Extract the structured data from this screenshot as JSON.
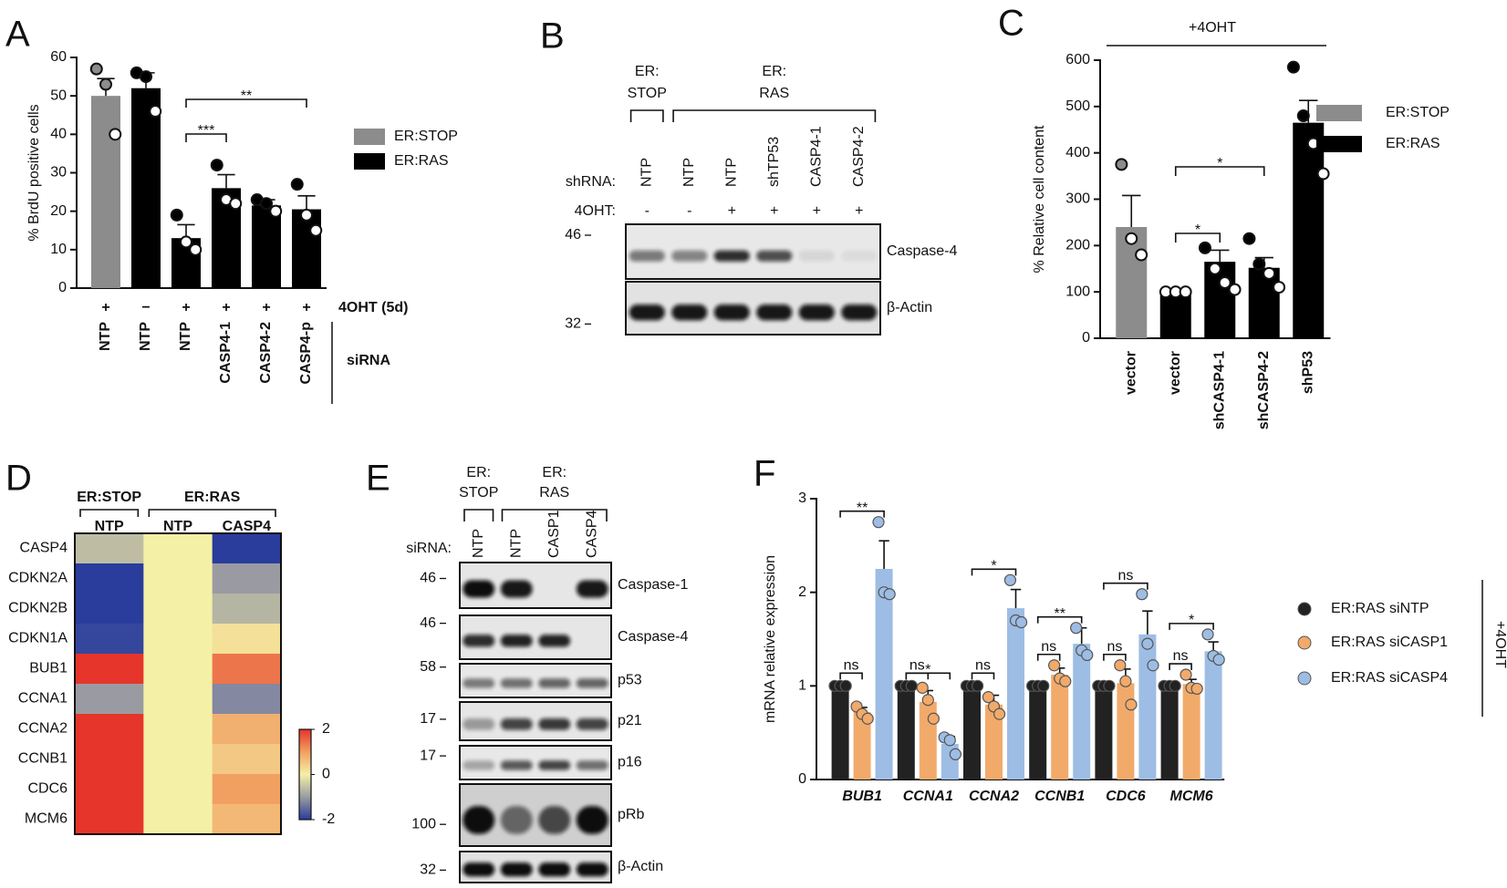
{
  "chart_data": [
    {
      "panel": "A",
      "type": "bar",
      "ylabel": "% BrdU positive cells",
      "categories": [
        "NTP",
        "NTP",
        "NTP",
        "CASP4-1",
        "CASP4-2",
        "CASP4-p"
      ],
      "treatment_label": "4OHT (5d)",
      "treatment": [
        "+",
        "−",
        "+",
        "+",
        "+",
        "+"
      ],
      "category_group_label": "siRNA",
      "series": [
        {
          "name": "ER:STOP",
          "color": "#8c8c8c",
          "values": [
            50,
            null,
            null,
            null,
            null,
            null
          ],
          "errors": [
            4.5,
            null,
            null,
            null,
            null,
            null
          ],
          "points": [
            [
              57,
              53,
              40
            ],
            null,
            null,
            null,
            null,
            null
          ]
        },
        {
          "name": "ER:RAS",
          "color": "#000000",
          "values": [
            null,
            52,
            13,
            26,
            21.5,
            20.5
          ],
          "errors": [
            null,
            4,
            3.5,
            3.5,
            1.5,
            3.5
          ],
          "points": [
            null,
            [
              56,
              55,
              46
            ],
            [
              19,
              12,
              10
            ],
            [
              32,
              23,
              22
            ],
            [
              23,
              22,
              20
            ],
            [
              27,
              19,
              15
            ]
          ]
        }
      ],
      "ylim": [
        0,
        60
      ],
      "yticks": [
        0,
        10,
        20,
        30,
        40,
        50,
        60
      ],
      "annotations": [
        {
          "text": "***",
          "from": 2,
          "to": 3
        },
        {
          "text": "**",
          "from": 2,
          "to": 5
        }
      ]
    },
    {
      "panel": "C",
      "type": "bar",
      "title": "+4OHT",
      "ylabel": "% Relative cell content",
      "categories": [
        "vector",
        "vector",
        "shCASP4-1",
        "shCASP4-2",
        "shP53"
      ],
      "series": [
        {
          "name": "ER:STOP",
          "color": "#8c8c8c",
          "values": [
            240,
            null,
            null,
            null,
            null
          ],
          "errors": [
            68,
            null,
            null,
            null,
            null
          ],
          "points": [
            [
              375,
              215,
              180
            ],
            null,
            null,
            null,
            null
          ]
        },
        {
          "name": "ER:RAS",
          "color": "#000000",
          "values": [
            null,
            100,
            165,
            152,
            465
          ],
          "errors": [
            null,
            5,
            25,
            22,
            48
          ],
          "points": [
            null,
            [
              100,
              100,
              100
            ],
            [
              195,
              150,
              120,
              105
            ],
            [
              215,
              160,
              140,
              110
            ],
            [
              585,
              480,
              420,
              355
            ]
          ]
        }
      ],
      "ylim": [
        0,
        600
      ],
      "yticks": [
        0,
        100,
        200,
        300,
        400,
        500,
        600
      ],
      "annotations": [
        {
          "text": "*",
          "from": 1,
          "to": 2
        },
        {
          "text": "*",
          "from": 1,
          "to": 3
        }
      ]
    },
    {
      "panel": "D",
      "type": "heatmap",
      "rows": [
        "CASP4",
        "CDKN2A",
        "CDKN2B",
        "CDKN1A",
        "BUB1",
        "CCNA1",
        "CCNA2",
        "CCNB1",
        "CDC6",
        "MCM6"
      ],
      "column_groups": [
        {
          "name": "ER:STOP",
          "columns": [
            "NTP"
          ]
        },
        {
          "name": "ER:RAS",
          "columns": [
            "NTP",
            "CASP4"
          ]
        }
      ],
      "values": [
        [
          -0.6,
          0,
          -2
        ],
        [
          -2,
          0,
          -1
        ],
        [
          -2,
          0,
          -0.7
        ],
        [
          -1.9,
          0,
          0.2
        ],
        [
          2,
          0,
          1.4
        ],
        [
          -1,
          0,
          -1.2
        ],
        [
          2,
          0,
          0.8
        ],
        [
          2,
          0,
          0.5
        ],
        [
          2,
          0,
          1
        ],
        [
          2,
          0,
          0.7
        ]
      ],
      "zlim": [
        -2,
        2
      ],
      "zticks": [
        2,
        0,
        -2
      ],
      "colors": [
        "#2a3c9c",
        "#9a9ba2",
        "#f4f0a6",
        "#f2a062",
        "#e6352a"
      ]
    },
    {
      "panel": "F",
      "type": "bar",
      "grouped": true,
      "ylabel": "mRNA relative expression",
      "categories": [
        "BUB1",
        "CCNA1",
        "CCNA2",
        "CCNB1",
        "CDC6",
        "MCM6"
      ],
      "side_label": "+4OHT",
      "series": [
        {
          "name": "ER:RAS siNTP",
          "color": "#222222",
          "values": [
            1,
            1,
            1,
            1,
            1,
            1
          ],
          "errors": [
            0.02,
            0.02,
            0.02,
            0.02,
            0.02,
            0.02
          ],
          "points": [
            [
              1,
              1,
              1
            ],
            [
              1,
              1,
              1
            ],
            [
              1,
              1,
              1
            ],
            [
              1,
              1,
              1
            ],
            [
              1,
              1,
              1
            ],
            [
              1,
              1,
              1
            ]
          ]
        },
        {
          "name": "ER:RAS siCASP1",
          "color": "#f2aa6a",
          "values": [
            0.72,
            0.83,
            0.8,
            1.12,
            1.03,
            1.02
          ],
          "errors": [
            0.05,
            0.12,
            0.1,
            0.07,
            0.15,
            0.05
          ],
          "points": [
            [
              0.78,
              0.7,
              0.65
            ],
            [
              0.98,
              0.85,
              0.65
            ],
            [
              0.88,
              0.78,
              0.7
            ],
            [
              1.22,
              1.08,
              1.05
            ],
            [
              1.22,
              1.05,
              0.8
            ],
            [
              1.12,
              0.98,
              0.97
            ]
          ]
        },
        {
          "name": "ER:RAS siCASP4",
          "color": "#9dbde4",
          "values": [
            2.25,
            0.38,
            1.83,
            1.45,
            1.55,
            1.37
          ],
          "errors": [
            0.3,
            0.08,
            0.2,
            0.17,
            0.25,
            0.1
          ],
          "points": [
            [
              2.75,
              2.0,
              1.98
            ],
            [
              0.45,
              0.42,
              0.27
            ],
            [
              2.13,
              1.7,
              1.68
            ],
            [
              1.62,
              1.38,
              1.33
            ],
            [
              1.98,
              1.45,
              1.22
            ],
            [
              1.55,
              1.32,
              1.28
            ]
          ]
        }
      ],
      "ylim": [
        0,
        3
      ],
      "yticks": [
        0,
        1,
        2,
        3
      ],
      "annotations": [
        {
          "category": 0,
          "from": 0,
          "to": 1,
          "text": "ns"
        },
        {
          "category": 0,
          "from": 0,
          "to": 2,
          "text": "**"
        },
        {
          "category": 1,
          "from": 0,
          "to": 1,
          "text": "ns"
        },
        {
          "category": 1,
          "from": 0,
          "to": 2,
          "text": "*"
        },
        {
          "category": 2,
          "from": 0,
          "to": 1,
          "text": "ns"
        },
        {
          "category": 2,
          "from": 0,
          "to": 2,
          "text": "*"
        },
        {
          "category": 3,
          "from": 0,
          "to": 1,
          "text": "ns"
        },
        {
          "category": 3,
          "from": 0,
          "to": 2,
          "text": "**"
        },
        {
          "category": 4,
          "from": 0,
          "to": 1,
          "text": "ns"
        },
        {
          "category": 4,
          "from": 0,
          "to": 2,
          "text": "ns"
        },
        {
          "category": 5,
          "from": 0,
          "to": 1,
          "text": "ns"
        },
        {
          "category": 5,
          "from": 0,
          "to": 2,
          "text": "*"
        }
      ]
    }
  ],
  "blots": [
    {
      "panel": "B",
      "groups": [
        {
          "name": [
            "ER:",
            "STOP"
          ]
        },
        {
          "name": [
            "ER:",
            "RAS"
          ]
        }
      ],
      "lane_label": "shRNA:",
      "lanes": [
        "NTP",
        "NTP",
        "NTP",
        "shTP53",
        "CASP4-1",
        "CASP4-2"
      ],
      "treatment_label": "4OHT:",
      "treatment": [
        "-",
        "-",
        "+",
        "+",
        "+",
        "+"
      ],
      "rows": [
        {
          "name": "Caspase-4",
          "marker": 46
        },
        {
          "name": "β-Actin",
          "marker": 32
        }
      ]
    },
    {
      "panel": "E",
      "groups": [
        {
          "name": [
            "ER:",
            "STOP"
          ]
        },
        {
          "name": [
            "ER:",
            "RAS"
          ]
        }
      ],
      "lane_label": "siRNA:",
      "lanes": [
        "NTP",
        "NTP",
        "CASP1",
        "CASP4"
      ],
      "rows": [
        {
          "name": "Caspase-1",
          "marker": 46
        },
        {
          "name": "Caspase-4",
          "marker": 46
        },
        {
          "name": "p53",
          "marker": 58
        },
        {
          "name": "p21",
          "marker": 17
        },
        {
          "name": "p16",
          "marker": 17
        },
        {
          "name": "pRb",
          "marker": 100
        },
        {
          "name": "β-Actin",
          "marker": 32
        }
      ]
    }
  ]
}
